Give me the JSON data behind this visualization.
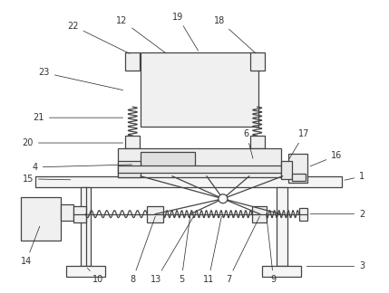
{
  "bg_color": "#ffffff",
  "line_color": "#444444",
  "label_color": "#333333",
  "figsize": [
    4.29,
    3.24
  ],
  "dpi": 100,
  "label_fs": 7.0
}
